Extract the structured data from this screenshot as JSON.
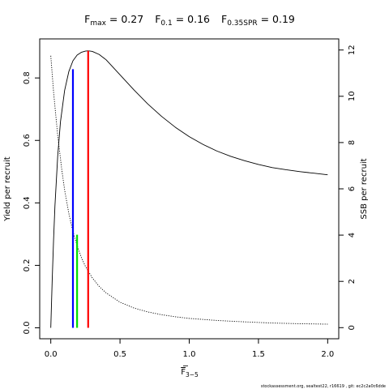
{
  "chart_data": {
    "type": "line",
    "title_parts": [
      {
        "main": "F",
        "sub": "max",
        "eq": " = 0.27"
      },
      {
        "main": "F",
        "sub": "0.1",
        "eq": " = 0.16"
      },
      {
        "main": "F",
        "sub": "0.35SPR",
        "eq": " = 0.19"
      }
    ],
    "xlabel": {
      "main": "F",
      "sub": "3−5"
    },
    "ylabel_left": "Yield per recruit",
    "ylabel_right": "SSB per recruit",
    "xlim": [
      0,
      2
    ],
    "ylim_left": [
      0,
      0.89
    ],
    "ylim_right": [
      0,
      12
    ],
    "x_ticks": [
      0,
      0.5,
      1,
      1.5,
      2
    ],
    "x_tick_labels": [
      "0.0",
      "0.5",
      "1.0",
      "1.5",
      "2.0"
    ],
    "y_left_ticks": [
      0,
      0.2,
      0.4,
      0.6,
      0.8
    ],
    "y_left_tick_labels": [
      "0.0",
      "0.2",
      "0.4",
      "0.6",
      "0.8"
    ],
    "y_right_ticks": [
      0,
      2,
      4,
      6,
      8,
      10,
      12
    ],
    "y_right_tick_labels": [
      "0",
      "2",
      "4",
      "6",
      "8",
      "10",
      "12"
    ],
    "series": [
      {
        "axis": "left",
        "style": "solid",
        "color": "#000000",
        "x": [
          0,
          0.01,
          0.02,
          0.03,
          0.05,
          0.07,
          0.1,
          0.13,
          0.16,
          0.19,
          0.22,
          0.25,
          0.27,
          0.3,
          0.35,
          0.4,
          0.5,
          0.6,
          0.7,
          0.8,
          0.9,
          1.0,
          1.1,
          1.2,
          1.3,
          1.4,
          1.5,
          1.6,
          1.7,
          1.8,
          1.9,
          2.0
        ],
        "values": [
          0.0,
          0.15,
          0.28,
          0.39,
          0.55,
          0.66,
          0.76,
          0.82,
          0.855,
          0.873,
          0.882,
          0.886,
          0.887,
          0.885,
          0.875,
          0.858,
          0.81,
          0.762,
          0.717,
          0.677,
          0.642,
          0.612,
          0.587,
          0.566,
          0.549,
          0.535,
          0.523,
          0.513,
          0.506,
          0.5,
          0.495,
          0.49
        ]
      },
      {
        "axis": "right",
        "style": "dotted",
        "color": "#000000",
        "x": [
          0,
          0.02,
          0.05,
          0.08,
          0.1,
          0.13,
          0.16,
          0.19,
          0.22,
          0.25,
          0.3,
          0.35,
          0.4,
          0.5,
          0.6,
          0.7,
          0.8,
          0.9,
          1.0,
          1.2,
          1.4,
          1.6,
          1.8,
          2.0
        ],
        "values": [
          11.75,
          10.2,
          8.3,
          6.8,
          5.95,
          4.95,
          4.15,
          3.55,
          3.05,
          2.65,
          2.15,
          1.78,
          1.5,
          1.1,
          0.85,
          0.68,
          0.56,
          0.47,
          0.4,
          0.31,
          0.25,
          0.2,
          0.17,
          0.15
        ]
      }
    ],
    "reference_lines": [
      {
        "x": 0.16,
        "y_left": 0.828,
        "color": "#0000ff"
      },
      {
        "x": 0.19,
        "y_left": 0.298,
        "color": "#00dd00"
      },
      {
        "x": 0.27,
        "y_left": 0.887,
        "color": "#ff0000"
      }
    ],
    "footer": "stockassessment.org, sealtest22, r16619 , git: ec2c2a0c6dde"
  }
}
